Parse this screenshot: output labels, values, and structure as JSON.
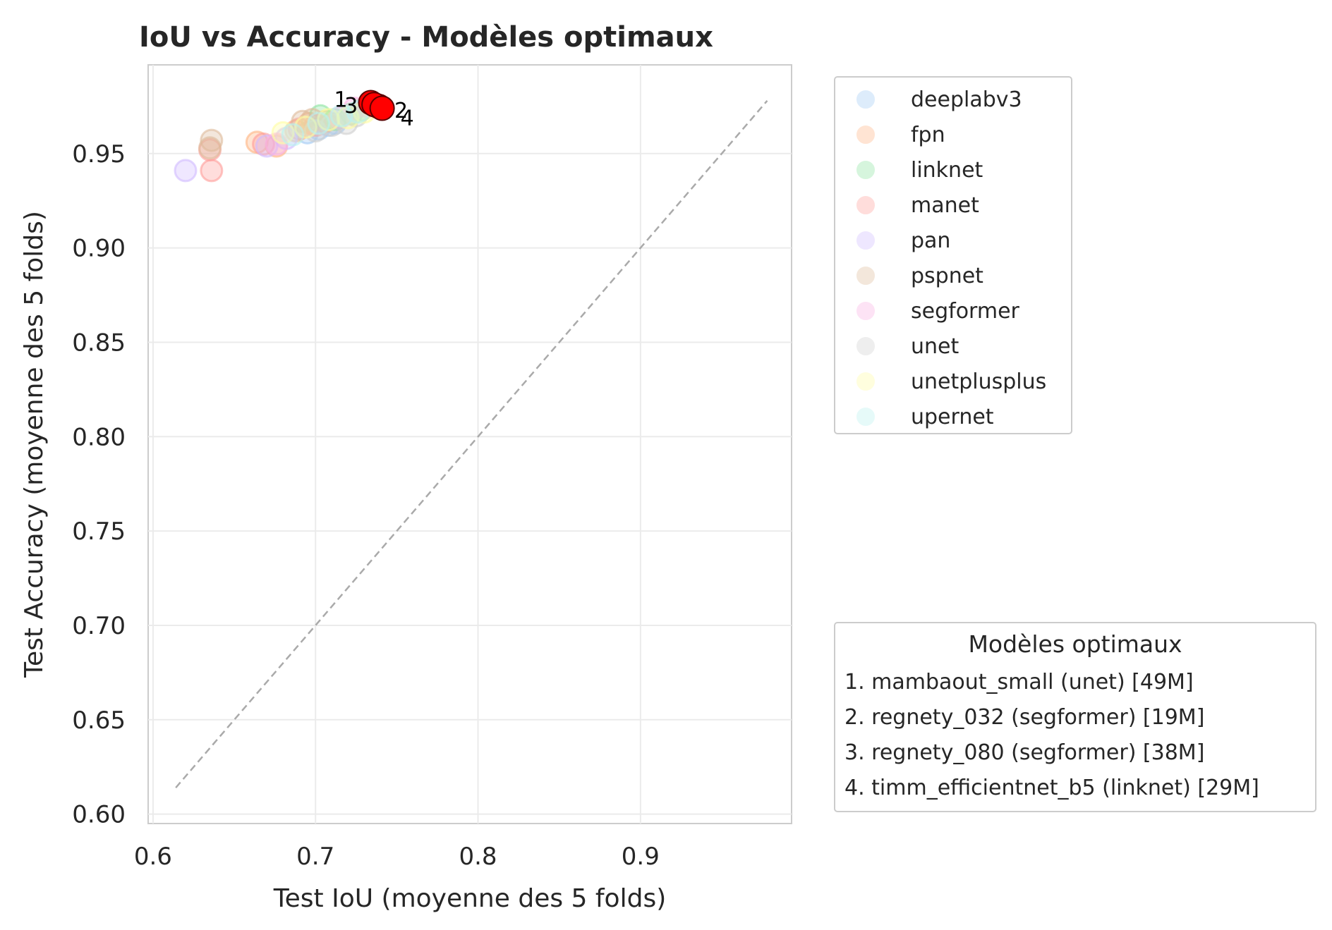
{
  "chart_data": {
    "type": "scatter",
    "title": "IoU vs Accuracy - Modèles optimaux",
    "xlabel": "Test IoU (moyenne des 5 folds)",
    "ylabel": "Test Accuracy (moyenne des 5 folds)",
    "xlim": [
      0.597,
      0.993
    ],
    "ylim": [
      0.595,
      0.997
    ],
    "x_ticks": [
      0.6,
      0.7,
      0.8,
      0.9
    ],
    "x_tick_labels": [
      "0.6",
      "0.7",
      "0.8",
      "0.9"
    ],
    "y_ticks": [
      0.6,
      0.65,
      0.7,
      0.75,
      0.8,
      0.85,
      0.9,
      0.95
    ],
    "y_tick_labels": [
      "0.60",
      "0.65",
      "0.70",
      "0.75",
      "0.80",
      "0.85",
      "0.90",
      "0.95"
    ],
    "grid": true,
    "reference_line": {
      "from": [
        0.614,
        0.614
      ],
      "to": [
        0.978,
        0.978
      ],
      "style": "dashed",
      "color": "#aaaaaa"
    },
    "series": [
      {
        "name": "deeplabv3",
        "color": "#a1c9f4",
        "points": [
          [
            0.695,
            0.961
          ],
          [
            0.702,
            0.963
          ],
          [
            0.708,
            0.965
          ],
          [
            0.712,
            0.966
          ]
        ]
      },
      {
        "name": "fpn",
        "color": "#ffb482",
        "points": [
          [
            0.664,
            0.956
          ],
          [
            0.676,
            0.954
          ],
          [
            0.688,
            0.962
          ],
          [
            0.696,
            0.966
          ],
          [
            0.706,
            0.967
          ]
        ]
      },
      {
        "name": "linknet",
        "color": "#8de5a1",
        "points": [
          [
            0.703,
            0.97
          ],
          [
            0.712,
            0.968
          ],
          [
            0.722,
            0.971
          ],
          [
            0.728,
            0.973
          ]
        ]
      },
      {
        "name": "manet",
        "color": "#ff9f9b",
        "points": [
          [
            0.635,
            0.952
          ],
          [
            0.636,
            0.941
          ],
          [
            0.668,
            0.955
          ],
          [
            0.69,
            0.963
          ],
          [
            0.7,
            0.965
          ]
        ]
      },
      {
        "name": "pan",
        "color": "#d0bbff",
        "points": [
          [
            0.62,
            0.941
          ],
          [
            0.67,
            0.954
          ],
          [
            0.682,
            0.958
          ]
        ]
      },
      {
        "name": "pspnet",
        "color": "#debb9b",
        "points": [
          [
            0.636,
            0.957
          ],
          [
            0.635,
            0.953
          ],
          [
            0.692,
            0.967
          ],
          [
            0.698,
            0.968
          ]
        ]
      },
      {
        "name": "segformer",
        "color": "#fab0e4",
        "points": [
          [
            0.676,
            0.955
          ],
          [
            0.715,
            0.969
          ],
          [
            0.724,
            0.974
          ],
          [
            0.732,
            0.975
          ]
        ]
      },
      {
        "name": "unet",
        "color": "#cfcfcf",
        "points": [
          [
            0.7,
            0.962
          ],
          [
            0.71,
            0.965
          ],
          [
            0.719,
            0.966
          ],
          [
            0.725,
            0.97
          ]
        ]
      },
      {
        "name": "unetplusplus",
        "color": "#fffea3",
        "points": [
          [
            0.68,
            0.961
          ],
          [
            0.694,
            0.964
          ],
          [
            0.708,
            0.968
          ],
          [
            0.72,
            0.969
          ],
          [
            0.73,
            0.972
          ]
        ]
      },
      {
        "name": "upernet",
        "color": "#b9f2f0",
        "points": [
          [
            0.686,
            0.96
          ],
          [
            0.702,
            0.966
          ],
          [
            0.716,
            0.97
          ],
          [
            0.726,
            0.972
          ]
        ]
      }
    ],
    "highlighted": {
      "color": "#ff0000",
      "points": [
        {
          "rank": "1",
          "x": 0.734,
          "y": 0.977
        },
        {
          "rank": "2",
          "x": 0.739,
          "y": 0.975
        },
        {
          "rank": "3",
          "x": 0.736,
          "y": 0.976
        },
        {
          "rank": "4",
          "x": 0.741,
          "y": 0.974
        }
      ]
    },
    "optimal_legend": {
      "title": "Modèles optimaux",
      "items": [
        "1. mambaout_small (unet) [49M]",
        "2. regnety_032 (segformer) [19M]",
        "3. regnety_080 (segformer) [38M]",
        "4. timm_efficientnet_b5 (linknet) [29M]"
      ]
    },
    "legend_placement": "outside-right"
  }
}
